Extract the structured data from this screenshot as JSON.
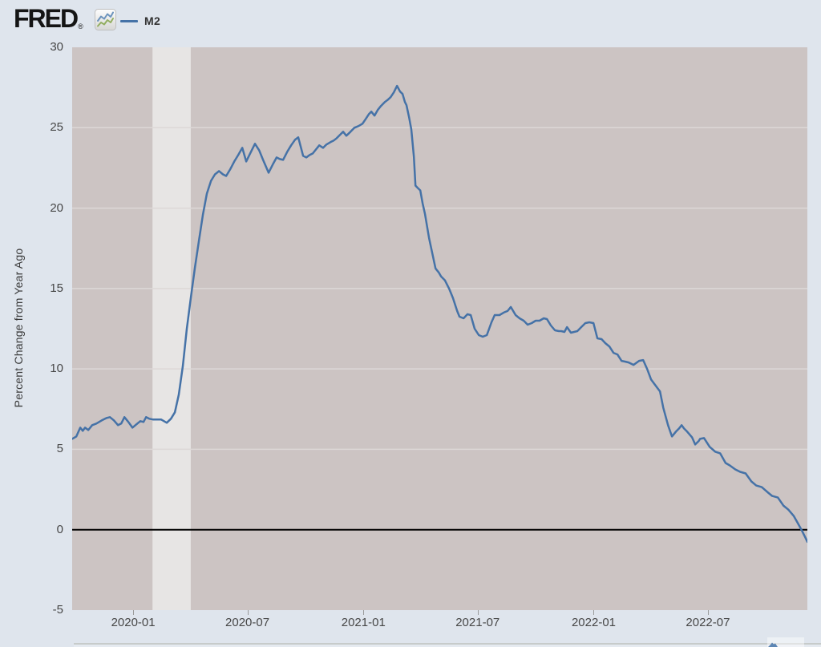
{
  "header": {
    "logo": {
      "text": "FRED",
      "registered": "®"
    },
    "legend": {
      "label": "M2",
      "swatch_color": "#4572a7"
    }
  },
  "colors": {
    "page_bg": "#dfe5ed",
    "plot_bg": "#ccc4c3",
    "recession_band": "#e7e5e4",
    "gridline": "#ddd8d7",
    "zero_line": "#000000",
    "series_line": "#4572a7",
    "tick_text": "#474747"
  },
  "chart_data": {
    "type": "line",
    "ylabel": "Percent Change from Year Ago",
    "ylim": [
      -5,
      30
    ],
    "y_ticks": [
      30,
      25,
      20,
      15,
      10,
      5,
      0,
      -5
    ],
    "grid": true,
    "zero_line": true,
    "xlim_decimal_year": [
      2019.735,
      2022.928
    ],
    "x_ticks": [
      {
        "label": "2020-01",
        "x": 2020.0
      },
      {
        "label": "2020-07",
        "x": 2020.496
      },
      {
        "label": "2021-01",
        "x": 2021.0
      },
      {
        "label": "2021-07",
        "x": 2021.496
      },
      {
        "label": "2022-01",
        "x": 2022.0
      },
      {
        "label": "2022-07",
        "x": 2022.496
      }
    ],
    "recession_bands_decimal_year": [
      [
        2020.084,
        2020.25
      ]
    ],
    "legend_position": "top-left",
    "series": [
      {
        "name": "M2",
        "color": "#4572a7",
        "points": [
          [
            2019.735,
            5.65
          ],
          [
            2019.753,
            5.8
          ],
          [
            2019.77,
            6.35
          ],
          [
            2019.781,
            6.15
          ],
          [
            2019.791,
            6.35
          ],
          [
            2019.805,
            6.2
          ],
          [
            2019.822,
            6.5
          ],
          [
            2019.84,
            6.6
          ],
          [
            2019.864,
            6.8
          ],
          [
            2019.885,
            6.95
          ],
          [
            2019.899,
            7.0
          ],
          [
            2019.916,
            6.8
          ],
          [
            2019.934,
            6.5
          ],
          [
            2019.948,
            6.6
          ],
          [
            2019.962,
            7.0
          ],
          [
            2019.979,
            6.7
          ],
          [
            2019.997,
            6.35
          ],
          [
            2020.014,
            6.55
          ],
          [
            2020.031,
            6.75
          ],
          [
            2020.045,
            6.7
          ],
          [
            2020.056,
            7.0
          ],
          [
            2020.07,
            6.9
          ],
          [
            2020.087,
            6.85
          ],
          [
            2020.104,
            6.85
          ],
          [
            2020.122,
            6.85
          ],
          [
            2020.146,
            6.65
          ],
          [
            2020.164,
            6.9
          ],
          [
            2020.181,
            7.3
          ],
          [
            2020.198,
            8.4
          ],
          [
            2020.216,
            10.2
          ],
          [
            2020.233,
            12.5
          ],
          [
            2020.251,
            14.5
          ],
          [
            2020.268,
            16.3
          ],
          [
            2020.286,
            18.0
          ],
          [
            2020.303,
            19.6
          ],
          [
            2020.32,
            20.9
          ],
          [
            2020.338,
            21.7
          ],
          [
            2020.355,
            22.1
          ],
          [
            2020.373,
            22.3
          ],
          [
            2020.39,
            22.1
          ],
          [
            2020.404,
            22.0
          ],
          [
            2020.421,
            22.4
          ],
          [
            2020.439,
            22.9
          ],
          [
            2020.456,
            23.3
          ],
          [
            2020.474,
            23.75
          ],
          [
            2020.491,
            22.9
          ],
          [
            2020.508,
            23.4
          ],
          [
            2020.529,
            24.0
          ],
          [
            2020.547,
            23.6
          ],
          [
            2020.564,
            23.0
          ],
          [
            2020.588,
            22.2
          ],
          [
            2020.606,
            22.7
          ],
          [
            2020.623,
            23.15
          ],
          [
            2020.637,
            23.05
          ],
          [
            2020.651,
            23.0
          ],
          [
            2020.669,
            23.5
          ],
          [
            2020.686,
            23.9
          ],
          [
            2020.703,
            24.25
          ],
          [
            2020.717,
            24.4
          ],
          [
            2020.738,
            23.25
          ],
          [
            2020.752,
            23.15
          ],
          [
            2020.766,
            23.3
          ],
          [
            2020.78,
            23.4
          ],
          [
            2020.794,
            23.65
          ],
          [
            2020.808,
            23.9
          ],
          [
            2020.825,
            23.75
          ],
          [
            2020.839,
            23.95
          ],
          [
            2020.857,
            24.1
          ],
          [
            2020.871,
            24.2
          ],
          [
            2020.884,
            24.35
          ],
          [
            2020.898,
            24.55
          ],
          [
            2020.912,
            24.75
          ],
          [
            2020.926,
            24.5
          ],
          [
            2020.944,
            24.75
          ],
          [
            2020.961,
            25.0
          ],
          [
            2020.978,
            25.1
          ],
          [
            2020.996,
            25.25
          ],
          [
            2021.01,
            25.55
          ],
          [
            2021.024,
            25.85
          ],
          [
            2021.034,
            26.0
          ],
          [
            2021.048,
            25.75
          ],
          [
            2021.062,
            26.1
          ],
          [
            2021.076,
            26.35
          ],
          [
            2021.093,
            26.6
          ],
          [
            2021.107,
            26.75
          ],
          [
            2021.118,
            26.9
          ],
          [
            2021.132,
            27.2
          ],
          [
            2021.146,
            27.6
          ],
          [
            2021.159,
            27.25
          ],
          [
            2021.17,
            27.1
          ],
          [
            2021.18,
            26.6
          ],
          [
            2021.187,
            26.4
          ],
          [
            2021.198,
            25.65
          ],
          [
            2021.208,
            24.9
          ],
          [
            2021.219,
            23.2
          ],
          [
            2021.226,
            21.4
          ],
          [
            2021.236,
            21.25
          ],
          [
            2021.247,
            21.1
          ],
          [
            2021.257,
            20.3
          ],
          [
            2021.267,
            19.65
          ],
          [
            2021.285,
            18.15
          ],
          [
            2021.302,
            17.0
          ],
          [
            2021.313,
            16.25
          ],
          [
            2021.327,
            16.0
          ],
          [
            2021.337,
            15.75
          ],
          [
            2021.354,
            15.5
          ],
          [
            2021.372,
            15.0
          ],
          [
            2021.389,
            14.4
          ],
          [
            2021.407,
            13.6
          ],
          [
            2021.417,
            13.25
          ],
          [
            2021.435,
            13.15
          ],
          [
            2021.452,
            13.4
          ],
          [
            2021.466,
            13.35
          ],
          [
            2021.483,
            12.5
          ],
          [
            2021.501,
            12.1
          ],
          [
            2021.518,
            12.0
          ],
          [
            2021.536,
            12.1
          ],
          [
            2021.556,
            12.9
          ],
          [
            2021.57,
            13.35
          ],
          [
            2021.591,
            13.35
          ],
          [
            2021.609,
            13.5
          ],
          [
            2021.626,
            13.6
          ],
          [
            2021.64,
            13.85
          ],
          [
            2021.661,
            13.35
          ],
          [
            2021.678,
            13.15
          ],
          [
            2021.696,
            13.0
          ],
          [
            2021.713,
            12.75
          ],
          [
            2021.731,
            12.85
          ],
          [
            2021.748,
            13.0
          ],
          [
            2021.765,
            13.0
          ],
          [
            2021.783,
            13.15
          ],
          [
            2021.797,
            13.1
          ],
          [
            2021.814,
            12.7
          ],
          [
            2021.832,
            12.4
          ],
          [
            2021.849,
            12.35
          ],
          [
            2021.859,
            12.35
          ],
          [
            2021.873,
            12.3
          ],
          [
            2021.884,
            12.6
          ],
          [
            2021.901,
            12.25
          ],
          [
            2021.915,
            12.3
          ],
          [
            2021.929,
            12.35
          ],
          [
            2021.946,
            12.6
          ],
          [
            2021.964,
            12.85
          ],
          [
            2021.981,
            12.9
          ],
          [
            2021.999,
            12.85
          ],
          [
            2022.016,
            11.9
          ],
          [
            2022.034,
            11.85
          ],
          [
            2022.051,
            11.6
          ],
          [
            2022.068,
            11.4
          ],
          [
            2022.086,
            11.0
          ],
          [
            2022.103,
            10.9
          ],
          [
            2022.121,
            10.5
          ],
          [
            2022.138,
            10.45
          ],
          [
            2022.152,
            10.4
          ],
          [
            2022.173,
            10.25
          ],
          [
            2022.197,
            10.5
          ],
          [
            2022.215,
            10.55
          ],
          [
            2022.232,
            10.0
          ],
          [
            2022.249,
            9.35
          ],
          [
            2022.267,
            9.0
          ],
          [
            2022.288,
            8.6
          ],
          [
            2022.302,
            7.6
          ],
          [
            2022.323,
            6.5
          ],
          [
            2022.34,
            5.8
          ],
          [
            2022.357,
            6.1
          ],
          [
            2022.371,
            6.3
          ],
          [
            2022.382,
            6.5
          ],
          [
            2022.392,
            6.3
          ],
          [
            2022.406,
            6.1
          ],
          [
            2022.427,
            5.75
          ],
          [
            2022.441,
            5.3
          ],
          [
            2022.455,
            5.5
          ],
          [
            2022.462,
            5.65
          ],
          [
            2022.479,
            5.7
          ],
          [
            2022.504,
            5.15
          ],
          [
            2022.528,
            4.85
          ],
          [
            2022.549,
            4.75
          ],
          [
            2022.573,
            4.15
          ],
          [
            2022.591,
            4.0
          ],
          [
            2022.615,
            3.75
          ],
          [
            2022.636,
            3.6
          ],
          [
            2022.66,
            3.5
          ],
          [
            2022.685,
            3.0
          ],
          [
            2022.706,
            2.75
          ],
          [
            2022.73,
            2.65
          ],
          [
            2022.754,
            2.35
          ],
          [
            2022.775,
            2.1
          ],
          [
            2022.8,
            2.0
          ],
          [
            2022.824,
            1.5
          ],
          [
            2022.845,
            1.25
          ],
          [
            2022.869,
            0.85
          ],
          [
            2022.887,
            0.4
          ],
          [
            2022.904,
            -0.05
          ],
          [
            2022.918,
            -0.45
          ],
          [
            2022.928,
            -0.75
          ]
        ]
      }
    ]
  }
}
